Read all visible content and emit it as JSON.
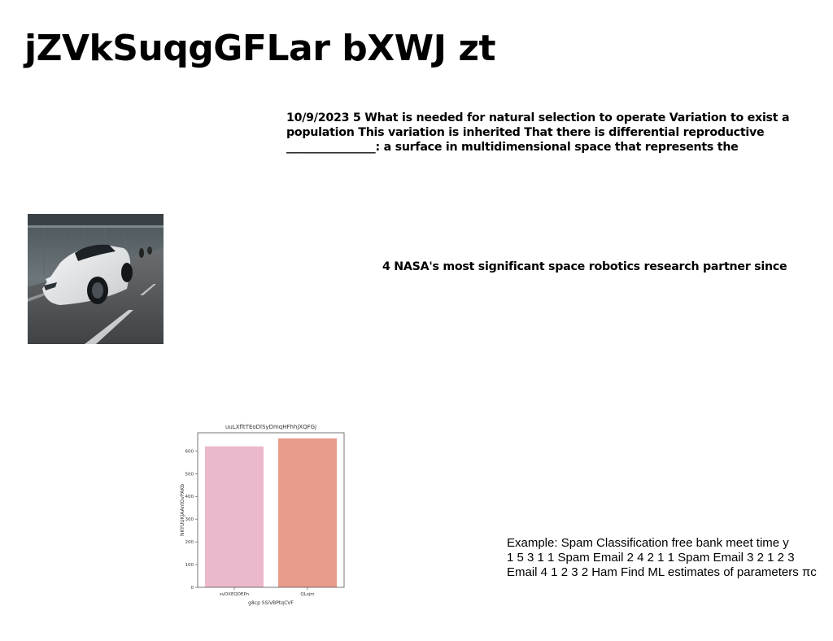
{
  "title": "jZVkSuqgGFLar bXWJ zt",
  "paragraphs": {
    "p1": "10/9/2023 5 What is needed for natural selection to operate Variation to exist a population This variation is inherited That there is differential reproductive ________________: a surface in multidimensional space that represents the",
    "p2": "4 NASA's most significant space robotics research partner since",
    "p3": {
      "line1": "Example: Spam Classification free bank meet time y",
      "line2": "1 5 3 1 1 Spam Email 2 4 2 1 1 Spam Email 3 2 1 2 3",
      "line3": "Email 4 1 2 3 2 Ham Find ML estimates of parameters πc"
    }
  },
  "photo": {
    "subject": "white sports car driving in tunnel"
  },
  "chart_data": {
    "type": "bar",
    "title": "uuLXfltTEoDlSyDmqHFhhjXQFGj",
    "xlabel": "g8cp SSiVBPtqCVF",
    "ylabel": "NKYUUKJAAntGvPAKb",
    "categories": [
      "svDXEQDEPn",
      "QLsjm"
    ],
    "values": [
      620,
      655
    ],
    "colors": [
      "#ecb8cc",
      "#e89c8c"
    ],
    "ylim": [
      0,
      680
    ],
    "yticks": [
      0,
      100,
      200,
      300,
      400,
      500,
      600
    ],
    "grid": false
  }
}
